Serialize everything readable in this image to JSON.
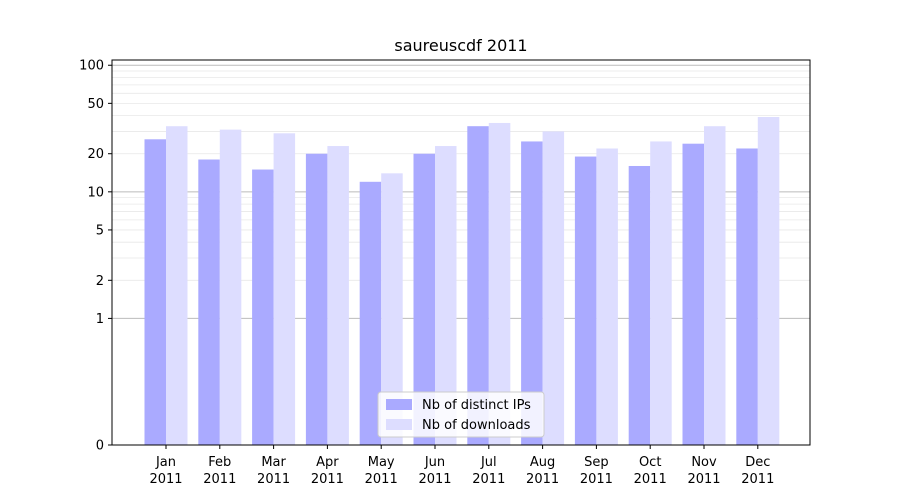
{
  "chart_data": {
    "type": "bar",
    "title": "saureuscdf 2011",
    "xlabel": "",
    "ylabel": "",
    "yscale": "symlog",
    "ylim": [
      0,
      110
    ],
    "grid": true,
    "legend_placement": "bottom-center",
    "categories": [
      {
        "month": "Jan",
        "year": "2011"
      },
      {
        "month": "Feb",
        "year": "2011"
      },
      {
        "month": "Mar",
        "year": "2011"
      },
      {
        "month": "Apr",
        "year": "2011"
      },
      {
        "month": "May",
        "year": "2011"
      },
      {
        "month": "Jun",
        "year": "2011"
      },
      {
        "month": "Jul",
        "year": "2011"
      },
      {
        "month": "Aug",
        "year": "2011"
      },
      {
        "month": "Sep",
        "year": "2011"
      },
      {
        "month": "Oct",
        "year": "2011"
      },
      {
        "month": "Nov",
        "year": "2011"
      },
      {
        "month": "Dec",
        "year": "2011"
      }
    ],
    "y_ticks": [
      0,
      1,
      2,
      5,
      10,
      20,
      50,
      100
    ],
    "series": [
      {
        "name": "Nb of distinct IPs",
        "color": "#aaaaff",
        "values": [
          26,
          18,
          15,
          20,
          12,
          20,
          33,
          25,
          19,
          16,
          24,
          22
        ]
      },
      {
        "name": "Nb of downloads",
        "color": "#ddddff",
        "values": [
          33,
          31,
          29,
          23,
          14,
          23,
          35,
          30,
          22,
          25,
          33,
          39
        ]
      }
    ]
  }
}
